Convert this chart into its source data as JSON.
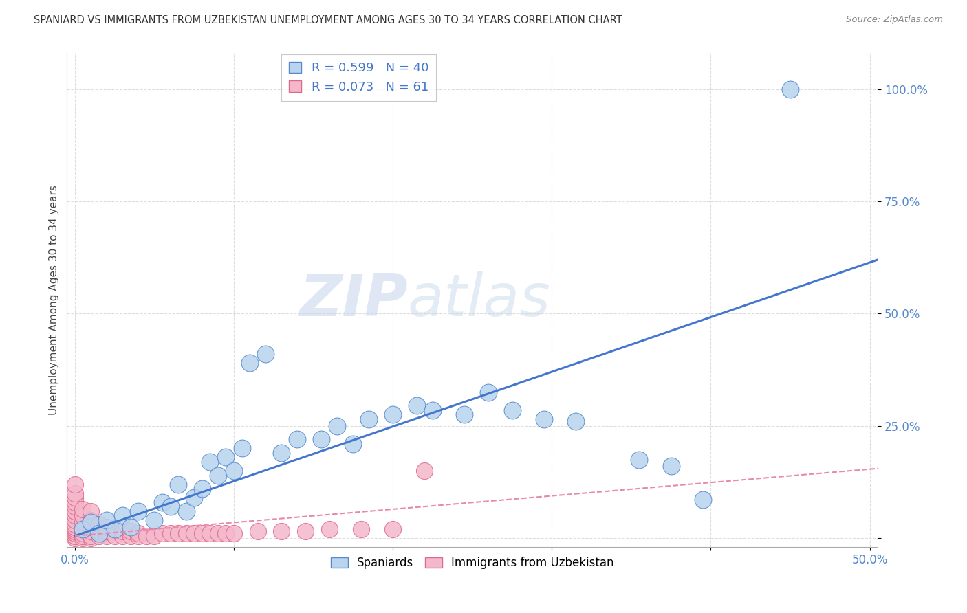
{
  "title": "SPANIARD VS IMMIGRANTS FROM UZBEKISTAN UNEMPLOYMENT AMONG AGES 30 TO 34 YEARS CORRELATION CHART",
  "source": "Source: ZipAtlas.com",
  "ylabel": "Unemployment Among Ages 30 to 34 years",
  "xlim": [
    -0.005,
    0.505
  ],
  "ylim": [
    -0.02,
    1.08
  ],
  "xtick_positions": [
    0.0,
    0.1,
    0.2,
    0.3,
    0.4,
    0.5
  ],
  "xticklabels": [
    "0.0%",
    "",
    "",
    "",
    "",
    "50.0%"
  ],
  "ytick_positions": [
    0.0,
    0.25,
    0.5,
    0.75,
    1.0
  ],
  "yticklabels": [
    "",
    "25.0%",
    "50.0%",
    "75.0%",
    "100.0%"
  ],
  "watermark_zip": "ZIP",
  "watermark_atlas": "atlas",
  "legend_r1": "R = 0.599",
  "legend_n1": "N = 40",
  "legend_r2": "R = 0.073",
  "legend_n2": "N = 61",
  "legend_label1": "Spaniards",
  "legend_label2": "Immigrants from Uzbekistan",
  "color_spaniards_face": "#b8d4ee",
  "color_spaniards_edge": "#5588cc",
  "color_uzbekistan_face": "#f4b8cc",
  "color_uzbekistan_edge": "#e06888",
  "color_line_spaniards": "#4477cc",
  "color_line_uzbekistan": "#e888aa",
  "background_color": "#ffffff",
  "sp_line_x0": 0.0,
  "sp_line_x1": 0.505,
  "sp_line_y0": 0.005,
  "sp_line_y1": 0.62,
  "uz_line_x0": 0.0,
  "uz_line_x1": 0.505,
  "uz_line_y0": 0.005,
  "uz_line_y1": 0.155,
  "spaniards_x": [
    0.005,
    0.01,
    0.015,
    0.02,
    0.025,
    0.03,
    0.035,
    0.04,
    0.05,
    0.055,
    0.06,
    0.065,
    0.07,
    0.075,
    0.08,
    0.085,
    0.09,
    0.095,
    0.1,
    0.105,
    0.11,
    0.12,
    0.13,
    0.14,
    0.155,
    0.165,
    0.175,
    0.185,
    0.2,
    0.215,
    0.225,
    0.245,
    0.26,
    0.275,
    0.295,
    0.315,
    0.355,
    0.375,
    0.395,
    0.45
  ],
  "spaniards_y": [
    0.02,
    0.035,
    0.01,
    0.04,
    0.02,
    0.05,
    0.025,
    0.06,
    0.04,
    0.08,
    0.07,
    0.12,
    0.06,
    0.09,
    0.11,
    0.17,
    0.14,
    0.18,
    0.15,
    0.2,
    0.39,
    0.41,
    0.19,
    0.22,
    0.22,
    0.25,
    0.21,
    0.265,
    0.275,
    0.295,
    0.285,
    0.275,
    0.325,
    0.285,
    0.265,
    0.26,
    0.175,
    0.16,
    0.085,
    1.0
  ],
  "uzbekistan_x": [
    0.0,
    0.0,
    0.0,
    0.0,
    0.0,
    0.0,
    0.0,
    0.0,
    0.0,
    0.0,
    0.0,
    0.0,
    0.0,
    0.0,
    0.0,
    0.005,
    0.005,
    0.005,
    0.005,
    0.005,
    0.005,
    0.005,
    0.01,
    0.01,
    0.01,
    0.01,
    0.01,
    0.01,
    0.015,
    0.015,
    0.015,
    0.02,
    0.02,
    0.02,
    0.025,
    0.025,
    0.03,
    0.03,
    0.035,
    0.035,
    0.04,
    0.04,
    0.045,
    0.05,
    0.055,
    0.06,
    0.065,
    0.07,
    0.075,
    0.08,
    0.085,
    0.09,
    0.095,
    0.1,
    0.115,
    0.13,
    0.145,
    0.16,
    0.18,
    0.2,
    0.22
  ],
  "uzbekistan_y": [
    0.0,
    0.005,
    0.01,
    0.015,
    0.02,
    0.025,
    0.03,
    0.04,
    0.05,
    0.06,
    0.07,
    0.08,
    0.09,
    0.1,
    0.12,
    0.0,
    0.005,
    0.01,
    0.02,
    0.035,
    0.05,
    0.065,
    0.0,
    0.005,
    0.015,
    0.025,
    0.04,
    0.06,
    0.005,
    0.015,
    0.03,
    0.005,
    0.015,
    0.025,
    0.005,
    0.02,
    0.005,
    0.015,
    0.005,
    0.015,
    0.005,
    0.01,
    0.005,
    0.005,
    0.01,
    0.01,
    0.01,
    0.01,
    0.01,
    0.01,
    0.01,
    0.01,
    0.01,
    0.01,
    0.015,
    0.015,
    0.015,
    0.02,
    0.02,
    0.02,
    0.15
  ]
}
